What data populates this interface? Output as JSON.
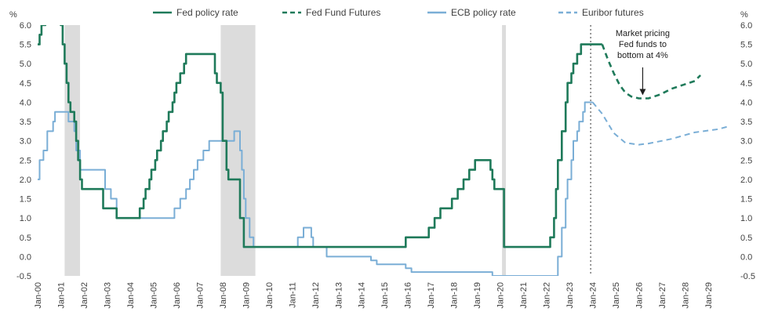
{
  "chart_data": {
    "type": "line",
    "x_axis": {
      "type": "date",
      "range": [
        "2000-01",
        "2029-12"
      ],
      "tick_labels": [
        "Jan-00",
        "Jan-01",
        "Jan-02",
        "Jan-03",
        "Jan-04",
        "Jan-05",
        "Jan-06",
        "Jan-07",
        "Jan-08",
        "Jan-09",
        "Jan-10",
        "Jan-11",
        "Jan-12",
        "Jan-13",
        "Jan-14",
        "Jan-15",
        "Jan-16",
        "Jan-17",
        "Jan-18",
        "Jan-19",
        "Jan-20",
        "Jan-21",
        "Jan-22",
        "Jan-23",
        "Jan-24",
        "Jan-25",
        "Jan-26",
        "Jan-27",
        "Jan-28",
        "Jan-29"
      ]
    },
    "y_axis": {
      "unit_label": "%",
      "range": [
        -0.5,
        6.0
      ],
      "tick_labels": [
        "-0.5",
        "0.0",
        "0.5",
        "1.0",
        "1.5",
        "2.0",
        "2.5",
        "3.0",
        "3.5",
        "4.0",
        "4.5",
        "5.0",
        "5.5",
        "6.0"
      ],
      "dual": true
    },
    "grid": false,
    "legend": {
      "position": "top",
      "entries": [
        {
          "label": "Fed policy rate",
          "color": "#1f7a5a",
          "style": "solid"
        },
        {
          "label": "Fed Fund Futures",
          "color": "#1f7a5a",
          "style": "dashed"
        },
        {
          "label": "ECB policy rate",
          "color": "#7aaed6",
          "style": "solid"
        },
        {
          "label": "Euribor futures",
          "color": "#7aaed6",
          "style": "dashed"
        }
      ]
    },
    "recession_shading": [
      {
        "start": "2001-03",
        "end": "2001-11"
      },
      {
        "start": "2007-12",
        "end": "2009-06"
      },
      {
        "start": "2020-02",
        "end": "2020-04"
      }
    ],
    "reference_line": {
      "x": "2023-12",
      "style": "dotted"
    },
    "annotation": {
      "text": [
        "Market pricing",
        "Fed funds to",
        "bottom at 4%"
      ],
      "points_to": {
        "x": "2026-03",
        "y": 4.1
      }
    },
    "series": [
      {
        "name": "Fed policy rate",
        "color": "#1f7a5a",
        "style": "solid",
        "step": true,
        "points": [
          [
            "2000-01",
            5.5
          ],
          [
            "2000-02",
            5.75
          ],
          [
            "2000-03",
            6.0
          ],
          [
            "2000-05",
            6.5
          ],
          [
            "2001-01",
            6.0
          ],
          [
            "2001-02",
            5.5
          ],
          [
            "2001-03",
            5.0
          ],
          [
            "2001-04",
            4.5
          ],
          [
            "2001-05",
            4.0
          ],
          [
            "2001-06",
            3.75
          ],
          [
            "2001-08",
            3.5
          ],
          [
            "2001-09",
            3.0
          ],
          [
            "2001-10",
            2.5
          ],
          [
            "2001-11",
            2.0
          ],
          [
            "2001-12",
            1.75
          ],
          [
            "2002-11",
            1.25
          ],
          [
            "2003-06",
            1.0
          ],
          [
            "2004-06",
            1.25
          ],
          [
            "2004-08",
            1.5
          ],
          [
            "2004-09",
            1.75
          ],
          [
            "2004-11",
            2.0
          ],
          [
            "2004-12",
            2.25
          ],
          [
            "2005-02",
            2.5
          ],
          [
            "2005-03",
            2.75
          ],
          [
            "2005-05",
            3.0
          ],
          [
            "2005-06",
            3.25
          ],
          [
            "2005-08",
            3.5
          ],
          [
            "2005-09",
            3.75
          ],
          [
            "2005-11",
            4.0
          ],
          [
            "2005-12",
            4.25
          ],
          [
            "2006-01",
            4.5
          ],
          [
            "2006-03",
            4.75
          ],
          [
            "2006-05",
            5.0
          ],
          [
            "2006-06",
            5.25
          ],
          [
            "2007-09",
            4.75
          ],
          [
            "2007-10",
            4.5
          ],
          [
            "2007-12",
            4.25
          ],
          [
            "2008-01",
            3.0
          ],
          [
            "2008-03",
            2.25
          ],
          [
            "2008-04",
            2.0
          ],
          [
            "2008-10",
            1.0
          ],
          [
            "2008-12",
            0.25
          ],
          [
            "2015-12",
            0.5
          ],
          [
            "2016-12",
            0.75
          ],
          [
            "2017-03",
            1.0
          ],
          [
            "2017-06",
            1.25
          ],
          [
            "2017-12",
            1.5
          ],
          [
            "2018-03",
            1.75
          ],
          [
            "2018-06",
            2.0
          ],
          [
            "2018-09",
            2.25
          ],
          [
            "2018-12",
            2.5
          ],
          [
            "2019-08",
            2.25
          ],
          [
            "2019-09",
            2.0
          ],
          [
            "2019-10",
            1.75
          ],
          [
            "2020-03",
            0.25
          ],
          [
            "2022-03",
            0.5
          ],
          [
            "2022-05",
            1.0
          ],
          [
            "2022-06",
            1.75
          ],
          [
            "2022-07",
            2.5
          ],
          [
            "2022-09",
            3.25
          ],
          [
            "2022-11",
            4.0
          ],
          [
            "2022-12",
            4.5
          ],
          [
            "2023-02",
            4.75
          ],
          [
            "2023-03",
            5.0
          ],
          [
            "2023-05",
            5.25
          ],
          [
            "2023-07",
            5.5
          ],
          [
            "2024-06",
            5.5
          ]
        ]
      },
      {
        "name": "Fed Fund Futures",
        "color": "#1f7a5a",
        "style": "dashed",
        "step": false,
        "points": [
          [
            "2024-06",
            5.5
          ],
          [
            "2024-09",
            5.1
          ],
          [
            "2024-12",
            4.75
          ],
          [
            "2025-03",
            4.45
          ],
          [
            "2025-06",
            4.25
          ],
          [
            "2025-09",
            4.15
          ],
          [
            "2026-01",
            4.1
          ],
          [
            "2026-06",
            4.1
          ],
          [
            "2026-12",
            4.2
          ],
          [
            "2027-06",
            4.35
          ],
          [
            "2027-12",
            4.45
          ],
          [
            "2028-06",
            4.55
          ],
          [
            "2028-09",
            4.7
          ]
        ]
      },
      {
        "name": "ECB policy rate",
        "color": "#7aaed6",
        "style": "solid",
        "step": true,
        "points": [
          [
            "2000-01",
            2.0
          ],
          [
            "2000-02",
            2.5
          ],
          [
            "2000-04",
            2.75
          ],
          [
            "2000-06",
            3.25
          ],
          [
            "2000-09",
            3.5
          ],
          [
            "2000-10",
            3.75
          ],
          [
            "2001-05",
            3.5
          ],
          [
            "2001-08",
            3.25
          ],
          [
            "2001-09",
            2.75
          ],
          [
            "2001-11",
            2.25
          ],
          [
            "2002-12",
            1.75
          ],
          [
            "2003-03",
            1.5
          ],
          [
            "2003-06",
            1.0
          ],
          [
            "2005-12",
            1.25
          ],
          [
            "2006-03",
            1.5
          ],
          [
            "2006-06",
            1.75
          ],
          [
            "2006-08",
            2.0
          ],
          [
            "2006-10",
            2.25
          ],
          [
            "2006-12",
            2.5
          ],
          [
            "2007-03",
            2.75
          ],
          [
            "2007-06",
            3.0
          ],
          [
            "2008-07",
            3.25
          ],
          [
            "2008-10",
            2.75
          ],
          [
            "2008-11",
            2.25
          ],
          [
            "2008-12",
            1.5
          ],
          [
            "2009-01",
            1.0
          ],
          [
            "2009-03",
            0.5
          ],
          [
            "2009-05",
            0.25
          ],
          [
            "2011-04",
            0.5
          ],
          [
            "2011-07",
            0.75
          ],
          [
            "2011-11",
            0.5
          ],
          [
            "2011-12",
            0.25
          ],
          [
            "2012-07",
            0.0
          ],
          [
            "2014-06",
            -0.1
          ],
          [
            "2014-09",
            -0.2
          ],
          [
            "2015-12",
            -0.3
          ],
          [
            "2016-03",
            -0.4
          ],
          [
            "2019-09",
            -0.5
          ],
          [
            "2022-07",
            0.0
          ],
          [
            "2022-09",
            0.75
          ],
          [
            "2022-11",
            1.5
          ],
          [
            "2022-12",
            2.0
          ],
          [
            "2023-02",
            2.5
          ],
          [
            "2023-03",
            3.0
          ],
          [
            "2023-05",
            3.25
          ],
          [
            "2023-06",
            3.5
          ],
          [
            "2023-08",
            3.75
          ],
          [
            "2023-09",
            4.0
          ],
          [
            "2024-01",
            4.0
          ]
        ]
      },
      {
        "name": "Euribor futures",
        "color": "#7aaed6",
        "style": "dashed",
        "step": false,
        "points": [
          [
            "2024-01",
            4.0
          ],
          [
            "2024-06",
            3.7
          ],
          [
            "2024-12",
            3.2
          ],
          [
            "2025-06",
            2.95
          ],
          [
            "2026-01",
            2.9
          ],
          [
            "2026-06",
            2.93
          ],
          [
            "2027-01",
            3.0
          ],
          [
            "2027-06",
            3.05
          ],
          [
            "2028-01",
            3.15
          ],
          [
            "2028-06",
            3.22
          ],
          [
            "2029-06",
            3.3
          ],
          [
            "2029-12",
            3.38
          ]
        ]
      }
    ]
  }
}
